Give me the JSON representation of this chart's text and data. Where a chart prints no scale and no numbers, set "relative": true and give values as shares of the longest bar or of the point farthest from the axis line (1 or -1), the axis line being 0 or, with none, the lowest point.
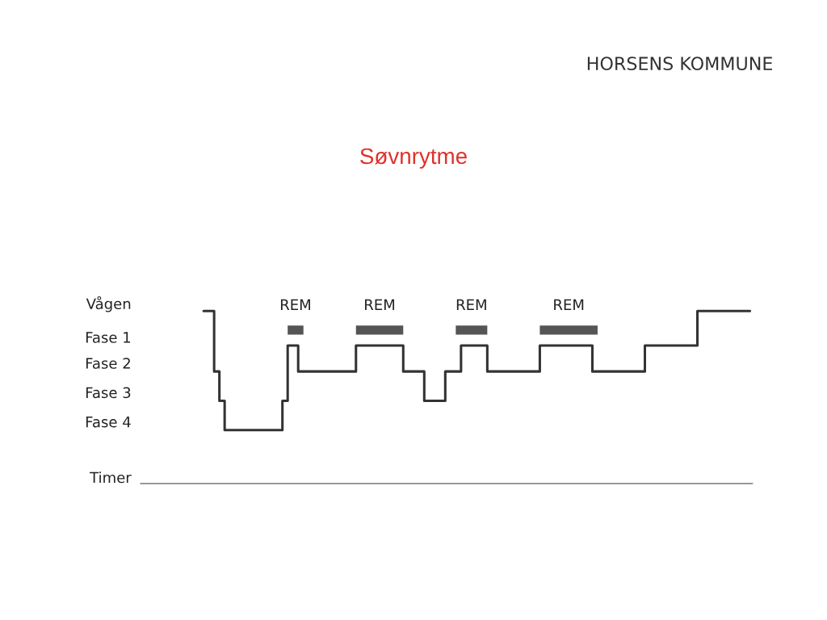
{
  "chart_data": {
    "type": "step",
    "title": "Søvnrytme",
    "xlabel": "Timer",
    "relative": true,
    "annotations": [
      "HORSENS KOMMUNE",
      "Vågen",
      "Fase 1",
      "Fase 2",
      "Fase 3",
      "Fase 4",
      "REM",
      "REM",
      "REM",
      "REM"
    ],
    "categories": [
      null,
      null,
      null,
      null,
      null,
      null,
      null,
      null,
      null,
      null,
      null,
      null,
      null,
      null,
      null,
      null,
      null,
      null,
      null,
      null,
      null,
      null,
      null,
      null,
      null,
      null,
      null,
      null,
      null,
      null,
      null,
      null,
      null,
      null,
      null,
      null,
      null,
      null,
      null,
      null,
      null,
      null,
      null,
      null,
      null,
      null,
      null,
      null,
      null,
      null,
      null,
      null,
      null,
      null,
      null,
      null,
      null,
      null,
      null,
      null,
      null,
      null,
      null,
      null,
      null,
      null,
      null,
      null,
      null,
      null,
      null,
      null,
      null,
      null,
      null,
      null,
      null,
      null,
      null,
      null,
      null,
      null,
      null,
      null,
      null,
      null,
      null,
      null,
      null,
      null,
      null,
      null,
      null,
      null,
      null,
      null,
      null,
      null,
      null,
      null,
      null,
      null,
      null,
      null,
      null
    ],
    "series": [
      {
        "color": "#333333",
        "values": [
          1,
          1,
          0.65,
          0.48,
          0.31,
          0.31,
          0.31,
          0.31,
          0.31,
          0.31,
          0.31,
          0.31,
          0.31,
          0.31,
          0.31,
          0.48,
          0.8,
          0.8,
          0.65,
          0.65,
          0.65,
          0.65,
          0.65,
          0.65,
          0.65,
          0.65,
          0.65,
          0.65,
          0.65,
          0.8,
          0.8,
          0.8,
          0.8,
          0.8,
          0.8,
          0.8,
          0.8,
          0.8,
          0.65,
          0.65,
          0.65,
          0.65,
          0.48,
          0.48,
          0.48,
          0.48,
          0.65,
          0.65,
          0.65,
          0.8,
          0.8,
          0.8,
          0.8,
          0.8,
          0.65,
          0.65,
          0.65,
          0.65,
          0.65,
          0.65,
          0.65,
          0.65,
          0.65,
          0.65,
          0.8,
          0.8,
          0.8,
          0.8,
          0.8,
          0.8,
          0.8,
          0.8,
          0.8,
          0.8,
          0.65,
          0.65,
          0.65,
          0.65,
          0.65,
          0.65,
          0.65,
          0.65,
          0.65,
          0.65,
          0.8,
          0.8,
          0.8,
          0.8,
          0.8,
          0.8,
          0.8,
          0.8,
          0.8,
          0.8,
          1,
          1,
          1,
          1,
          1,
          1,
          1,
          1,
          1,
          1,
          1
        ]
      },
      {
        "type": "line",
        "color": "#555555",
        "values": [
          null,
          null,
          null,
          null,
          null,
          null,
          null,
          null,
          null,
          null,
          null,
          null,
          null,
          null,
          null,
          null,
          0.89,
          0.89,
          0.89,
          0.89,
          null,
          null,
          null,
          null,
          null,
          null,
          null,
          null,
          null,
          0.89,
          0.89,
          0.89,
          0.89,
          0.89,
          0.89,
          0.89,
          0.89,
          0.89,
          0.89,
          null,
          null,
          null,
          null,
          null,
          null,
          null,
          null,
          null,
          0.89,
          0.89,
          0.89,
          0.89,
          0.89,
          0.89,
          0.89,
          null,
          null,
          null,
          null,
          null,
          null,
          null,
          null,
          null,
          0.89,
          0.89,
          0.89,
          0.89,
          0.89,
          0.89,
          0.89,
          0.89,
          0.89,
          0.89,
          0.89,
          0.89,
          null,
          null,
          null,
          null,
          null,
          null,
          null,
          null,
          null,
          null,
          null,
          null,
          null,
          null,
          null,
          null,
          null,
          null,
          null,
          null,
          null,
          null,
          null,
          null,
          null,
          null,
          null,
          null,
          null
        ]
      }
    ]
  }
}
